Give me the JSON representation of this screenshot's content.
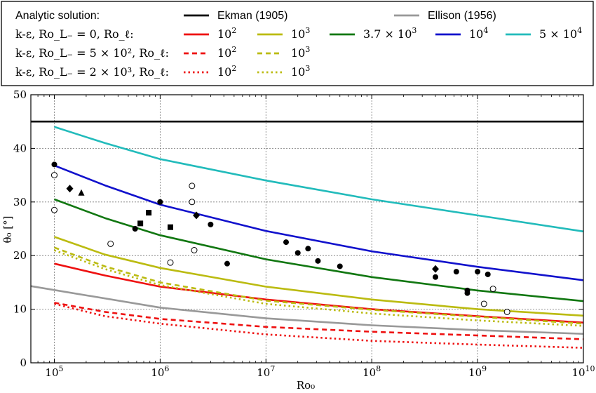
{
  "chart_data": {
    "type": "line",
    "xlabel": "Ro₀",
    "ylabel": "θ₀ [°]",
    "xscale": "log",
    "xlim": [
      60000,
      10000000000
    ],
    "ylim": [
      0,
      50
    ],
    "xticks": [
      100000,
      1000000,
      10000000,
      100000000,
      1000000000,
      10000000000
    ],
    "xtick_labels": [
      {
        "base": "10",
        "exp": "5"
      },
      {
        "base": "10",
        "exp": "6"
      },
      {
        "base": "10",
        "exp": "7"
      },
      {
        "base": "10",
        "exp": "8"
      },
      {
        "base": "10",
        "exp": "9"
      },
      {
        "base": "10",
        "exp": "10"
      }
    ],
    "yticks": [
      0,
      10,
      20,
      30,
      40,
      50
    ],
    "ytick_labels": [
      "0",
      "10",
      "20",
      "30",
      "40",
      "50"
    ],
    "grid": true,
    "legend_position": "top",
    "legend": {
      "rows": [
        {
          "label": "Analytic solution:",
          "entries": [
            {
              "label": "Ekman (1905)",
              "color": "#000000",
              "style": "solid",
              "font": "sans"
            },
            {
              "label": "Ellison (1956)",
              "color": "#999999",
              "style": "solid",
              "font": "sans"
            }
          ]
        },
        {
          "label": "k-ε, Ro_L₋ = 0, Ro_ℓ:",
          "entries": [
            {
              "label": "10",
              "sup": "2",
              "color": "#ee1111",
              "style": "solid"
            },
            {
              "label": "10",
              "sup": "3",
              "color": "#bbbb11",
              "style": "solid"
            },
            {
              "label": "3.7 × 10",
              "sup": "3",
              "color": "#117711",
              "style": "solid"
            },
            {
              "label": "10",
              "sup": "4",
              "color": "#1111cc",
              "style": "solid"
            },
            {
              "label": "5 × 10",
              "sup": "4",
              "color": "#22bbbb",
              "style": "solid"
            }
          ]
        },
        {
          "label": "k-ε, Ro_L₋ = 5 × 10², Ro_ℓ:",
          "entries": [
            {
              "label": "10",
              "sup": "2",
              "color": "#ee1111",
              "style": "dashed"
            },
            {
              "label": "10",
              "sup": "3",
              "color": "#bbbb11",
              "style": "dashed"
            }
          ]
        },
        {
          "label": "k-ε, Ro_L₋ = 2 × 10³, Ro_ℓ:",
          "entries": [
            {
              "label": "10",
              "sup": "2",
              "color": "#ee1111",
              "style": "dotted"
            },
            {
              "label": "10",
              "sup": "3",
              "color": "#bbbb11",
              "style": "dotted"
            }
          ]
        }
      ]
    },
    "series": [
      {
        "name": "Ekman (1905)",
        "color": "#000000",
        "style": "solid",
        "x": [
          60000,
          10000000000
        ],
        "y": [
          45,
          45
        ]
      },
      {
        "name": "Ellison (1956)",
        "color": "#999999",
        "style": "solid",
        "x": [
          60000,
          1000000,
          10000000,
          100000000,
          1000000000,
          10000000000
        ],
        "y": [
          14.3,
          10.3,
          8.3,
          7.0,
          6.1,
          5.4
        ]
      },
      {
        "name": "10²",
        "color": "#ee1111",
        "style": "solid",
        "x": [
          100000,
          300000,
          1000000,
          10000000,
          100000000,
          1000000000,
          10000000000
        ],
        "y": [
          18.5,
          16.3,
          14.2,
          11.8,
          10.0,
          8.7,
          7.5
        ]
      },
      {
        "name": "10³",
        "color": "#bbbb11",
        "style": "solid",
        "x": [
          100000,
          300000,
          1000000,
          10000000,
          100000000,
          1000000000,
          10000000000
        ],
        "y": [
          23.5,
          20.2,
          17.7,
          14.2,
          11.8,
          10.0,
          8.8
        ]
      },
      {
        "name": "3.7 × 10³",
        "color": "#117711",
        "style": "solid",
        "x": [
          100000,
          300000,
          1000000,
          10000000,
          100000000,
          1000000000,
          10000000000
        ],
        "y": [
          30.5,
          27.0,
          23.8,
          19.3,
          16.0,
          13.5,
          11.5
        ]
      },
      {
        "name": "10⁴",
        "color": "#1111cc",
        "style": "solid",
        "x": [
          100000,
          300000,
          1000000,
          10000000,
          100000000,
          1000000000,
          10000000000
        ],
        "y": [
          36.8,
          33.1,
          29.5,
          24.6,
          20.8,
          17.9,
          15.4
        ]
      },
      {
        "name": "5 × 10⁴",
        "color": "#22bbbb",
        "style": "solid",
        "x": [
          100000,
          300000,
          1000000,
          10000000,
          100000000,
          1000000000,
          10000000000
        ],
        "y": [
          44.0,
          41.0,
          38.0,
          34.0,
          30.5,
          27.5,
          24.5
        ]
      },
      {
        "name": "10² (Ro_L₋ = 5 × 10²)",
        "color": "#ee1111",
        "style": "dashed",
        "x": [
          100000,
          300000,
          1000000,
          10000000,
          100000000,
          1000000000,
          10000000000
        ],
        "y": [
          11.2,
          9.5,
          8.2,
          6.7,
          5.8,
          5.1,
          4.4
        ]
      },
      {
        "name": "10³ (Ro_L₋ = 5 × 10²)",
        "color": "#bbbb11",
        "style": "dashed",
        "x": [
          100000,
          300000,
          1000000,
          10000000,
          100000000,
          1000000000,
          10000000000
        ],
        "y": [
          21.5,
          18.0,
          15.0,
          11.6,
          9.9,
          8.6,
          7.3
        ]
      },
      {
        "name": "10² (Ro_L₋ = 2 × 10³)",
        "color": "#ee1111",
        "style": "dotted",
        "x": [
          100000,
          300000,
          1000000,
          10000000,
          100000000,
          1000000000,
          10000000000
        ],
        "y": [
          11.0,
          8.7,
          7.3,
          5.3,
          4.1,
          3.4,
          2.8
        ]
      },
      {
        "name": "10³ (Ro_L₋ = 2 × 10³)",
        "color": "#bbbb11",
        "style": "dotted",
        "x": [
          100000,
          300000,
          1000000,
          10000000,
          100000000,
          1000000000,
          10000000000
        ],
        "y": [
          21.0,
          17.5,
          14.5,
          11.0,
          9.2,
          7.9,
          6.9
        ]
      }
    ],
    "markers": {
      "filled_circle": [
        [
          100000,
          37
        ],
        [
          580000,
          25
        ],
        [
          1000000,
          30
        ],
        [
          3000000,
          25.8
        ],
        [
          4300000,
          18.5
        ],
        [
          15500000,
          22.5
        ],
        [
          20000000,
          20.5
        ],
        [
          25000000,
          21.3
        ],
        [
          31000000,
          19
        ],
        [
          50000000,
          18
        ],
        [
          400000000,
          16
        ],
        [
          630000000,
          17
        ],
        [
          800000000,
          13
        ],
        [
          800000000,
          13.5
        ],
        [
          1000000000,
          17
        ],
        [
          1250000000,
          16.5
        ]
      ],
      "open_circle": [
        [
          100000,
          35
        ],
        [
          100000,
          28.5
        ],
        [
          340000,
          22.2
        ],
        [
          1250000,
          18.7
        ],
        [
          2000000,
          33
        ],
        [
          2000000,
          30
        ],
        [
          2100000,
          21
        ],
        [
          1150000000,
          11
        ],
        [
          1400000000,
          13.8
        ],
        [
          1900000000,
          9.5
        ]
      ],
      "filled_square": [
        [
          650000,
          26
        ],
        [
          780000,
          28
        ],
        [
          1250000,
          25.3
        ]
      ],
      "filled_diamond": [
        [
          140000,
          32.5
        ],
        [
          2200000,
          27.5
        ],
        [
          400000000,
          17.5
        ]
      ],
      "filled_triangle": [
        [
          180000,
          31.7
        ]
      ]
    }
  }
}
